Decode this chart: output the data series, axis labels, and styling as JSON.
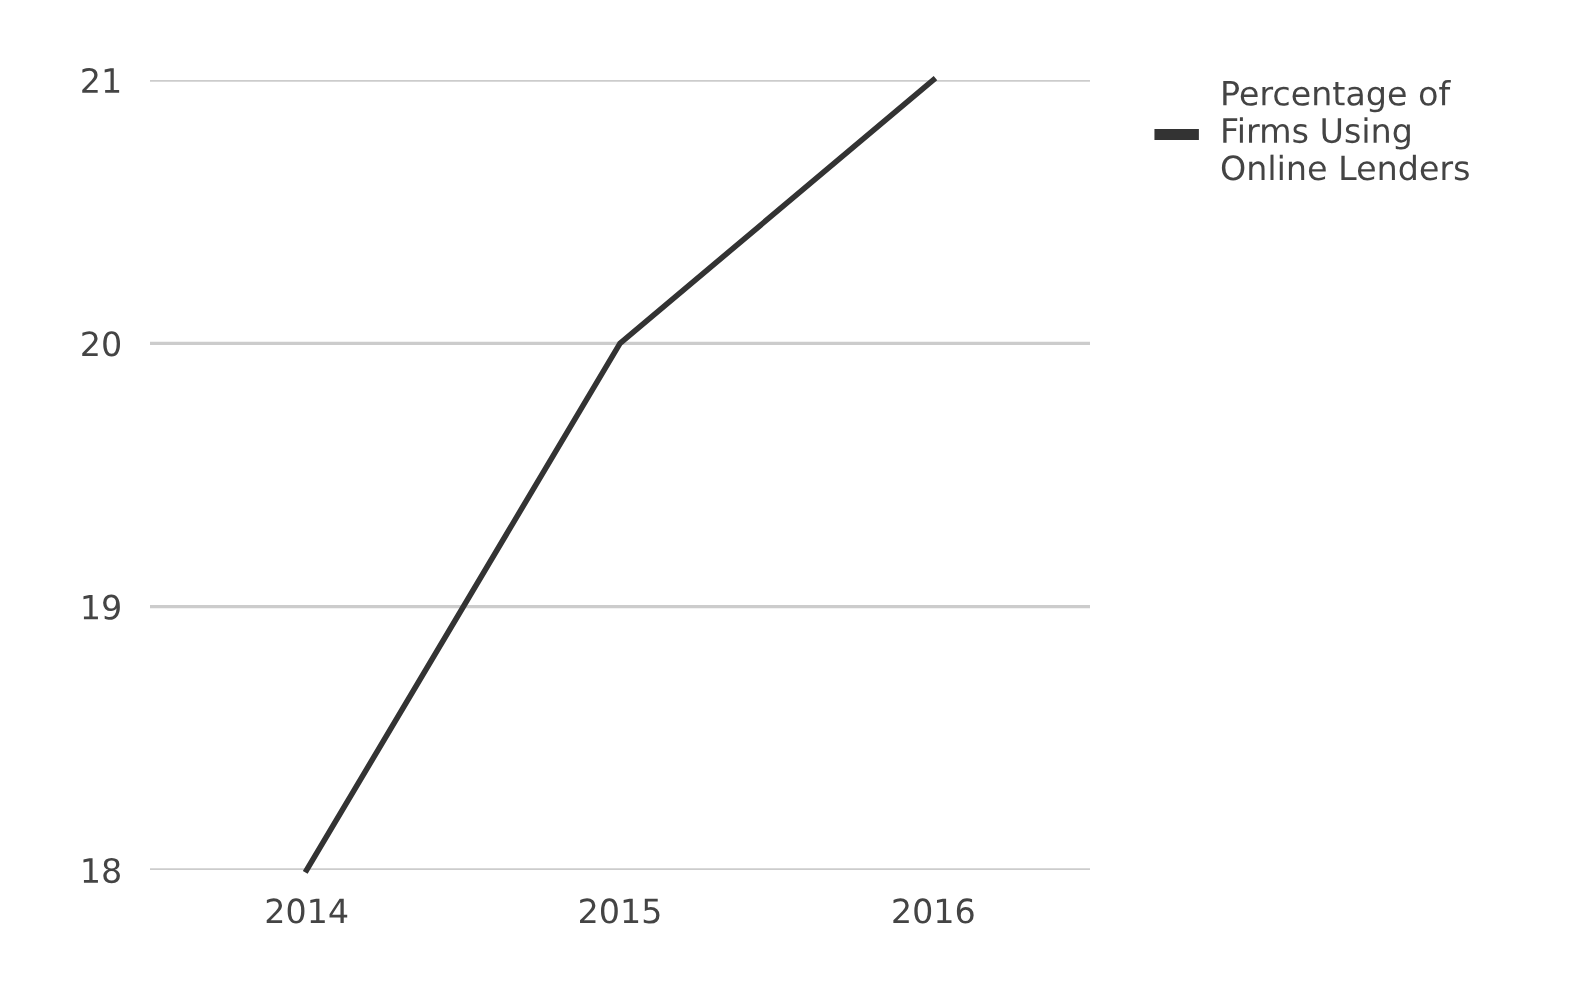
{
  "chart_data": {
    "type": "line",
    "categories": [
      "2014",
      "2015",
      "2016"
    ],
    "series": [
      {
        "name": "Percentage of Firms Using Online Lenders",
        "color": "#333333",
        "values": [
          18,
          20,
          21
        ]
      }
    ],
    "ylim": [
      18,
      21
    ],
    "yticks": [
      18,
      19,
      20,
      21
    ],
    "grid": "y",
    "legend": "top right",
    "marker": "none",
    "line_style": "solid"
  }
}
